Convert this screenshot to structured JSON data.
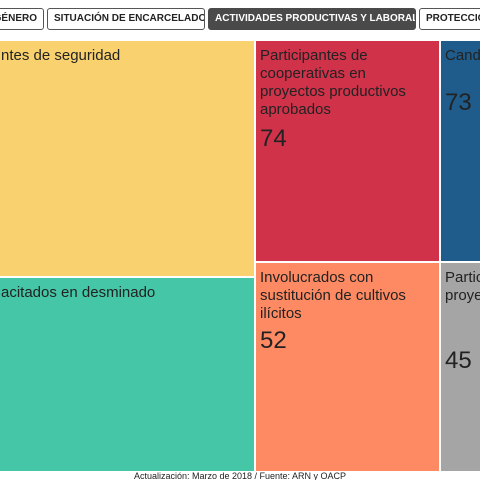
{
  "tabs": [
    {
      "label": "GÉNERO",
      "active": false
    },
    {
      "label": "SITUACIÓN DE ENCARCELADOS",
      "active": false
    },
    {
      "label": "ACTIVIDADES PRODUCTIVAS Y LABORALES",
      "active": true
    },
    {
      "label": "PROTECCIÓN",
      "active": false
    }
  ],
  "treemap": {
    "cells": [
      {
        "label": "ntes de seguridad",
        "value": "",
        "color": "#f9d26f"
      },
      {
        "label": "Participantes de cooperativas en proyectos productivos aprobados",
        "value": "74",
        "color": "#d0324a"
      },
      {
        "label": "Cand elecc",
        "value": "73",
        "color": "#1f5c8b"
      },
      {
        "label": "acitados en desminado",
        "value": "",
        "color": "#45c6a6"
      },
      {
        "label": "Involucrados con sustitución de cultivos ilícitos",
        "value": "52",
        "color": "#fd8a63"
      },
      {
        "label": "Partic coop proye regist",
        "value": "45",
        "color": "#a5a5a5"
      }
    ]
  },
  "footer": {
    "text": "Actualización: Marzo de 2018 / Fuente: ARN y OACP"
  }
}
